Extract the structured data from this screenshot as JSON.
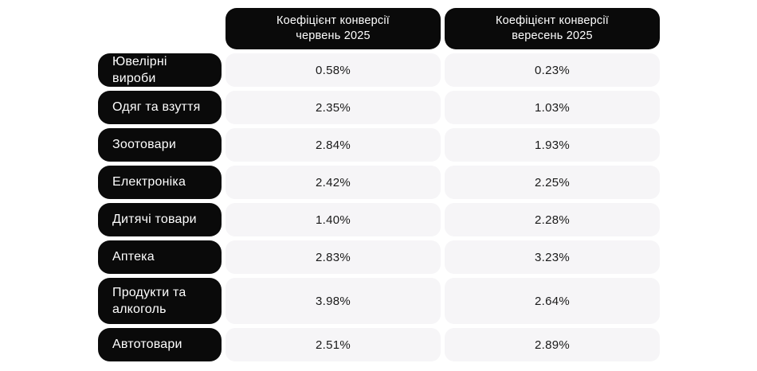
{
  "table": {
    "columns": [
      {
        "line1": "Коефіцієнт конверсії",
        "line2": "червень 2025"
      },
      {
        "line1": "Коефіцієнт конверсії",
        "line2": "вересень 2025"
      }
    ],
    "rows": [
      {
        "category": "Ювелірні вироби",
        "june": "0.58%",
        "september": "0.23%"
      },
      {
        "category": "Одяг та взуття",
        "june": "2.35%",
        "september": "1.03%"
      },
      {
        "category": "Зоотовари",
        "june": "2.84%",
        "september": "1.93%"
      },
      {
        "category": "Електроніка",
        "june": "2.42%",
        "september": "2.25%"
      },
      {
        "category": "Дитячі товари",
        "june": "1.40%",
        "september": "2.28%"
      },
      {
        "category": "Аптека",
        "june": "2.83%",
        "september": "3.23%"
      },
      {
        "category": "Продукти та алкоголь",
        "june": "3.98%",
        "september": "2.64%"
      },
      {
        "category": "Автотовари",
        "june": "2.51%",
        "september": "2.89%"
      }
    ],
    "colors": {
      "header_bg": "#0a0a0a",
      "label_bg": "#0a0a0a",
      "value_bg": "#f6f5f7",
      "header_text": "#ffffff",
      "value_text": "#1a1a1a",
      "page_bg": "#ffffff"
    }
  },
  "chart_data": {
    "type": "table",
    "title": "",
    "unit": "%",
    "categories": [
      "Ювелірні вироби",
      "Одяг та взуття",
      "Зоотовари",
      "Електроніка",
      "Дитячі товари",
      "Аптека",
      "Продукти та алкоголь",
      "Автотовари"
    ],
    "series": [
      {
        "name": "Коефіцієнт конверсії червень 2025",
        "values": [
          0.58,
          2.35,
          2.84,
          2.42,
          1.4,
          2.83,
          3.98,
          2.51
        ]
      },
      {
        "name": "Коефіцієнт конверсії вересень 2025",
        "values": [
          0.23,
          1.03,
          1.93,
          2.25,
          2.28,
          3.23,
          2.64,
          2.89
        ]
      }
    ]
  }
}
